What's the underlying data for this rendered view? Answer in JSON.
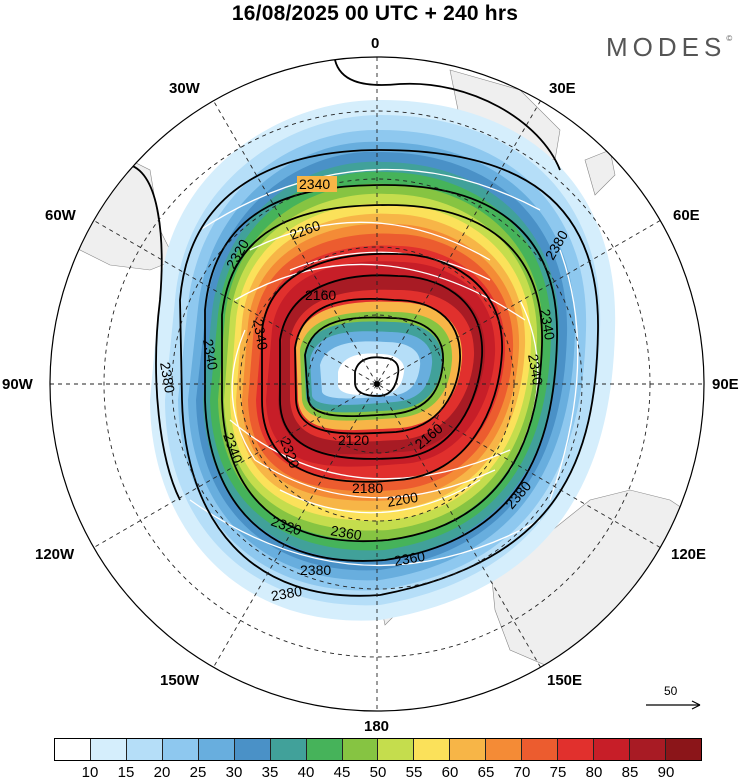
{
  "header": {
    "title": "16/08/2025  00 UTC  + 240 hrs",
    "logo": "MODES",
    "logo_mark": "©"
  },
  "map": {
    "projection": "polar-stereographic-south",
    "longitude_labels": {
      "n": "0",
      "ne30": "30E",
      "ne60": "60E",
      "e": "90E",
      "se120": "120E",
      "se150": "150E",
      "s": "180",
      "sw150": "150W",
      "sw120": "120W",
      "w": "90W",
      "nw60": "60W",
      "nw30": "30W"
    },
    "contour_labels": [
      "2340",
      "2380",
      "2380",
      "2340",
      "2380",
      "2380",
      "2340",
      "2320",
      "2340",
      "2160",
      "2120",
      "2160",
      "2180",
      "2200",
      "2360",
      "2380",
      "2340",
      "2320",
      "2360",
      "2340",
      "2260",
      "2320"
    ],
    "reference_vector": {
      "label": "50"
    }
  },
  "colorbar": {
    "colors": [
      "#ffffff",
      "#d5eefc",
      "#b5def8",
      "#8ec8ef",
      "#68aede",
      "#4a91c7",
      "#41a19a",
      "#46b35a",
      "#86c442",
      "#c5dd4d",
      "#fbe15a",
      "#f7b547",
      "#f48b36",
      "#ec5c2f",
      "#e1302d",
      "#c71e28",
      "#a81b24",
      "#8b1519"
    ],
    "ticks": [
      "10",
      "15",
      "20",
      "25",
      "30",
      "35",
      "40",
      "45",
      "50",
      "55",
      "60",
      "65",
      "70",
      "75",
      "80",
      "85",
      "90"
    ]
  }
}
